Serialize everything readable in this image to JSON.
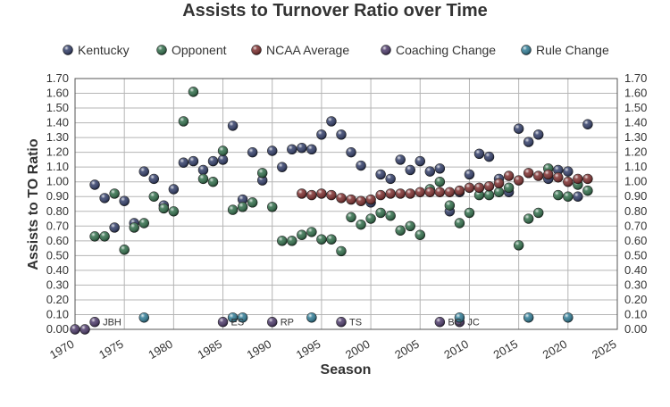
{
  "chart_data": {
    "type": "scatter",
    "title": "Assists to Turnover Ratio over Time",
    "xlabel": "Season",
    "ylabel": "Assists to TO Ratio",
    "xlim": [
      1970,
      2025
    ],
    "ylim": [
      0,
      1.7
    ],
    "x_ticks": [
      "1970",
      "1975",
      "1980",
      "1985",
      "1990",
      "1995",
      "2000",
      "2005",
      "2010",
      "2015",
      "2020",
      "2025"
    ],
    "y_ticks": [
      "0.00",
      "0.10",
      "0.20",
      "0.30",
      "0.40",
      "0.50",
      "0.60",
      "0.70",
      "0.80",
      "0.90",
      "1.00",
      "1.10",
      "1.20",
      "1.30",
      "1.40",
      "1.50",
      "1.60",
      "1.70"
    ],
    "grid": "vertical and horizontal",
    "legend_position": "top",
    "series": [
      {
        "name": "Kentucky",
        "color": "#2e3a66",
        "points": [
          [
            1972,
            0.98
          ],
          [
            1973,
            0.89
          ],
          [
            1974,
            0.69
          ],
          [
            1975,
            0.87
          ],
          [
            1976,
            0.72
          ],
          [
            1977,
            1.07
          ],
          [
            1978,
            1.02
          ],
          [
            1979,
            0.84
          ],
          [
            1980,
            0.95
          ],
          [
            1981,
            1.13
          ],
          [
            1982,
            1.14
          ],
          [
            1983,
            1.08
          ],
          [
            1984,
            1.14
          ],
          [
            1985,
            1.15
          ],
          [
            1986,
            1.38
          ],
          [
            1987,
            0.88
          ],
          [
            1988,
            1.2
          ],
          [
            1989,
            1.01
          ],
          [
            1990,
            1.21
          ],
          [
            1991,
            1.1
          ],
          [
            1992,
            1.22
          ],
          [
            1993,
            1.23
          ],
          [
            1994,
            1.22
          ],
          [
            1995,
            1.32
          ],
          [
            1996,
            1.41
          ],
          [
            1997,
            1.32
          ],
          [
            1998,
            1.2
          ],
          [
            1999,
            1.11
          ],
          [
            2000,
            0.86
          ],
          [
            2001,
            1.05
          ],
          [
            2002,
            1.02
          ],
          [
            2003,
            1.15
          ],
          [
            2004,
            1.08
          ],
          [
            2005,
            1.14
          ],
          [
            2006,
            1.07
          ],
          [
            2007,
            1.09
          ],
          [
            2008,
            0.8
          ],
          [
            2009,
            0.93
          ],
          [
            2010,
            1.05
          ],
          [
            2011,
            1.19
          ],
          [
            2012,
            1.17
          ],
          [
            2013,
            1.02
          ],
          [
            2014,
            0.93
          ],
          [
            2015,
            1.36
          ],
          [
            2016,
            1.27
          ],
          [
            2017,
            1.32
          ],
          [
            2018,
            1.02
          ],
          [
            2019,
            1.08
          ],
          [
            2020,
            1.07
          ],
          [
            2021,
            0.9
          ],
          [
            2022,
            1.39
          ]
        ]
      },
      {
        "name": "Opponent",
        "color": "#2d6b47",
        "points": [
          [
            1972,
            0.63
          ],
          [
            1973,
            0.63
          ],
          [
            1974,
            0.92
          ],
          [
            1975,
            0.54
          ],
          [
            1976,
            0.69
          ],
          [
            1977,
            0.72
          ],
          [
            1978,
            0.9
          ],
          [
            1979,
            0.82
          ],
          [
            1980,
            0.8
          ],
          [
            1981,
            1.41
          ],
          [
            1982,
            1.61
          ],
          [
            1983,
            1.02
          ],
          [
            1984,
            1.0
          ],
          [
            1985,
            1.21
          ],
          [
            1986,
            0.81
          ],
          [
            1987,
            0.83
          ],
          [
            1988,
            0.86
          ],
          [
            1989,
            1.06
          ],
          [
            1990,
            0.83
          ],
          [
            1991,
            0.6
          ],
          [
            1992,
            0.6
          ],
          [
            1993,
            0.64
          ],
          [
            1994,
            0.66
          ],
          [
            1995,
            0.61
          ],
          [
            1996,
            0.61
          ],
          [
            1997,
            0.53
          ],
          [
            1998,
            0.76
          ],
          [
            1999,
            0.71
          ],
          [
            2000,
            0.75
          ],
          [
            2001,
            0.79
          ],
          [
            2002,
            0.77
          ],
          [
            2003,
            0.67
          ],
          [
            2004,
            0.7
          ],
          [
            2005,
            0.64
          ],
          [
            2006,
            0.95
          ],
          [
            2007,
            1.0
          ],
          [
            2008,
            0.84
          ],
          [
            2009,
            0.72
          ],
          [
            2010,
            0.79
          ],
          [
            2011,
            0.91
          ],
          [
            2012,
            0.91
          ],
          [
            2013,
            0.93
          ],
          [
            2014,
            0.96
          ],
          [
            2015,
            0.57
          ],
          [
            2016,
            0.75
          ],
          [
            2017,
            0.79
          ],
          [
            2018,
            1.09
          ],
          [
            2019,
            0.91
          ],
          [
            2020,
            0.9
          ],
          [
            2021,
            0.98
          ],
          [
            2022,
            0.94
          ]
        ]
      },
      {
        "name": "NCAA Average",
        "color": "#7a2a2a",
        "points": [
          [
            1993,
            0.92
          ],
          [
            1994,
            0.91
          ],
          [
            1995,
            0.92
          ],
          [
            1996,
            0.91
          ],
          [
            1997,
            0.89
          ],
          [
            1998,
            0.88
          ],
          [
            1999,
            0.87
          ],
          [
            2000,
            0.88
          ],
          [
            2001,
            0.91
          ],
          [
            2002,
            0.92
          ],
          [
            2003,
            0.92
          ],
          [
            2004,
            0.92
          ],
          [
            2005,
            0.93
          ],
          [
            2006,
            0.93
          ],
          [
            2007,
            0.93
          ],
          [
            2008,
            0.93
          ],
          [
            2009,
            0.94
          ],
          [
            2010,
            0.96
          ],
          [
            2011,
            0.96
          ],
          [
            2012,
            0.97
          ],
          [
            2013,
            0.99
          ],
          [
            2014,
            1.04
          ],
          [
            2015,
            1.01
          ],
          [
            2016,
            1.06
          ],
          [
            2017,
            1.04
          ],
          [
            2018,
            1.05
          ],
          [
            2019,
            1.03
          ],
          [
            2020,
            1.0
          ],
          [
            2021,
            1.02
          ],
          [
            2022,
            1.02
          ]
        ]
      },
      {
        "name": "Coaching Change",
        "color": "#4a3768",
        "points": [
          [
            1970,
            0.0
          ],
          [
            1971,
            0.0
          ],
          [
            1972,
            0.05
          ],
          [
            1985,
            0.05
          ],
          [
            1990,
            0.05
          ],
          [
            1997,
            0.05
          ],
          [
            2007,
            0.05
          ],
          [
            2009,
            0.05
          ]
        ]
      },
      {
        "name": "Rule Change",
        "color": "#2d7a94",
        "points": [
          [
            1977,
            0.08
          ],
          [
            1986,
            0.08
          ],
          [
            1987,
            0.08
          ],
          [
            1994,
            0.08
          ],
          [
            2009,
            0.08
          ],
          [
            2016,
            0.08
          ],
          [
            2020,
            0.08
          ]
        ]
      }
    ],
    "annotations": [
      {
        "x": 1972,
        "y": 0.05,
        "text": "JBH"
      },
      {
        "x": 1985,
        "y": 0.05,
        "text": "ES"
      },
      {
        "x": 1990,
        "y": 0.05,
        "text": "RP"
      },
      {
        "x": 1997,
        "y": 0.05,
        "text": "TS"
      },
      {
        "x": 2007,
        "y": 0.05,
        "text": "BG"
      },
      {
        "x": 2009,
        "y": 0.05,
        "text": "JC"
      }
    ]
  }
}
